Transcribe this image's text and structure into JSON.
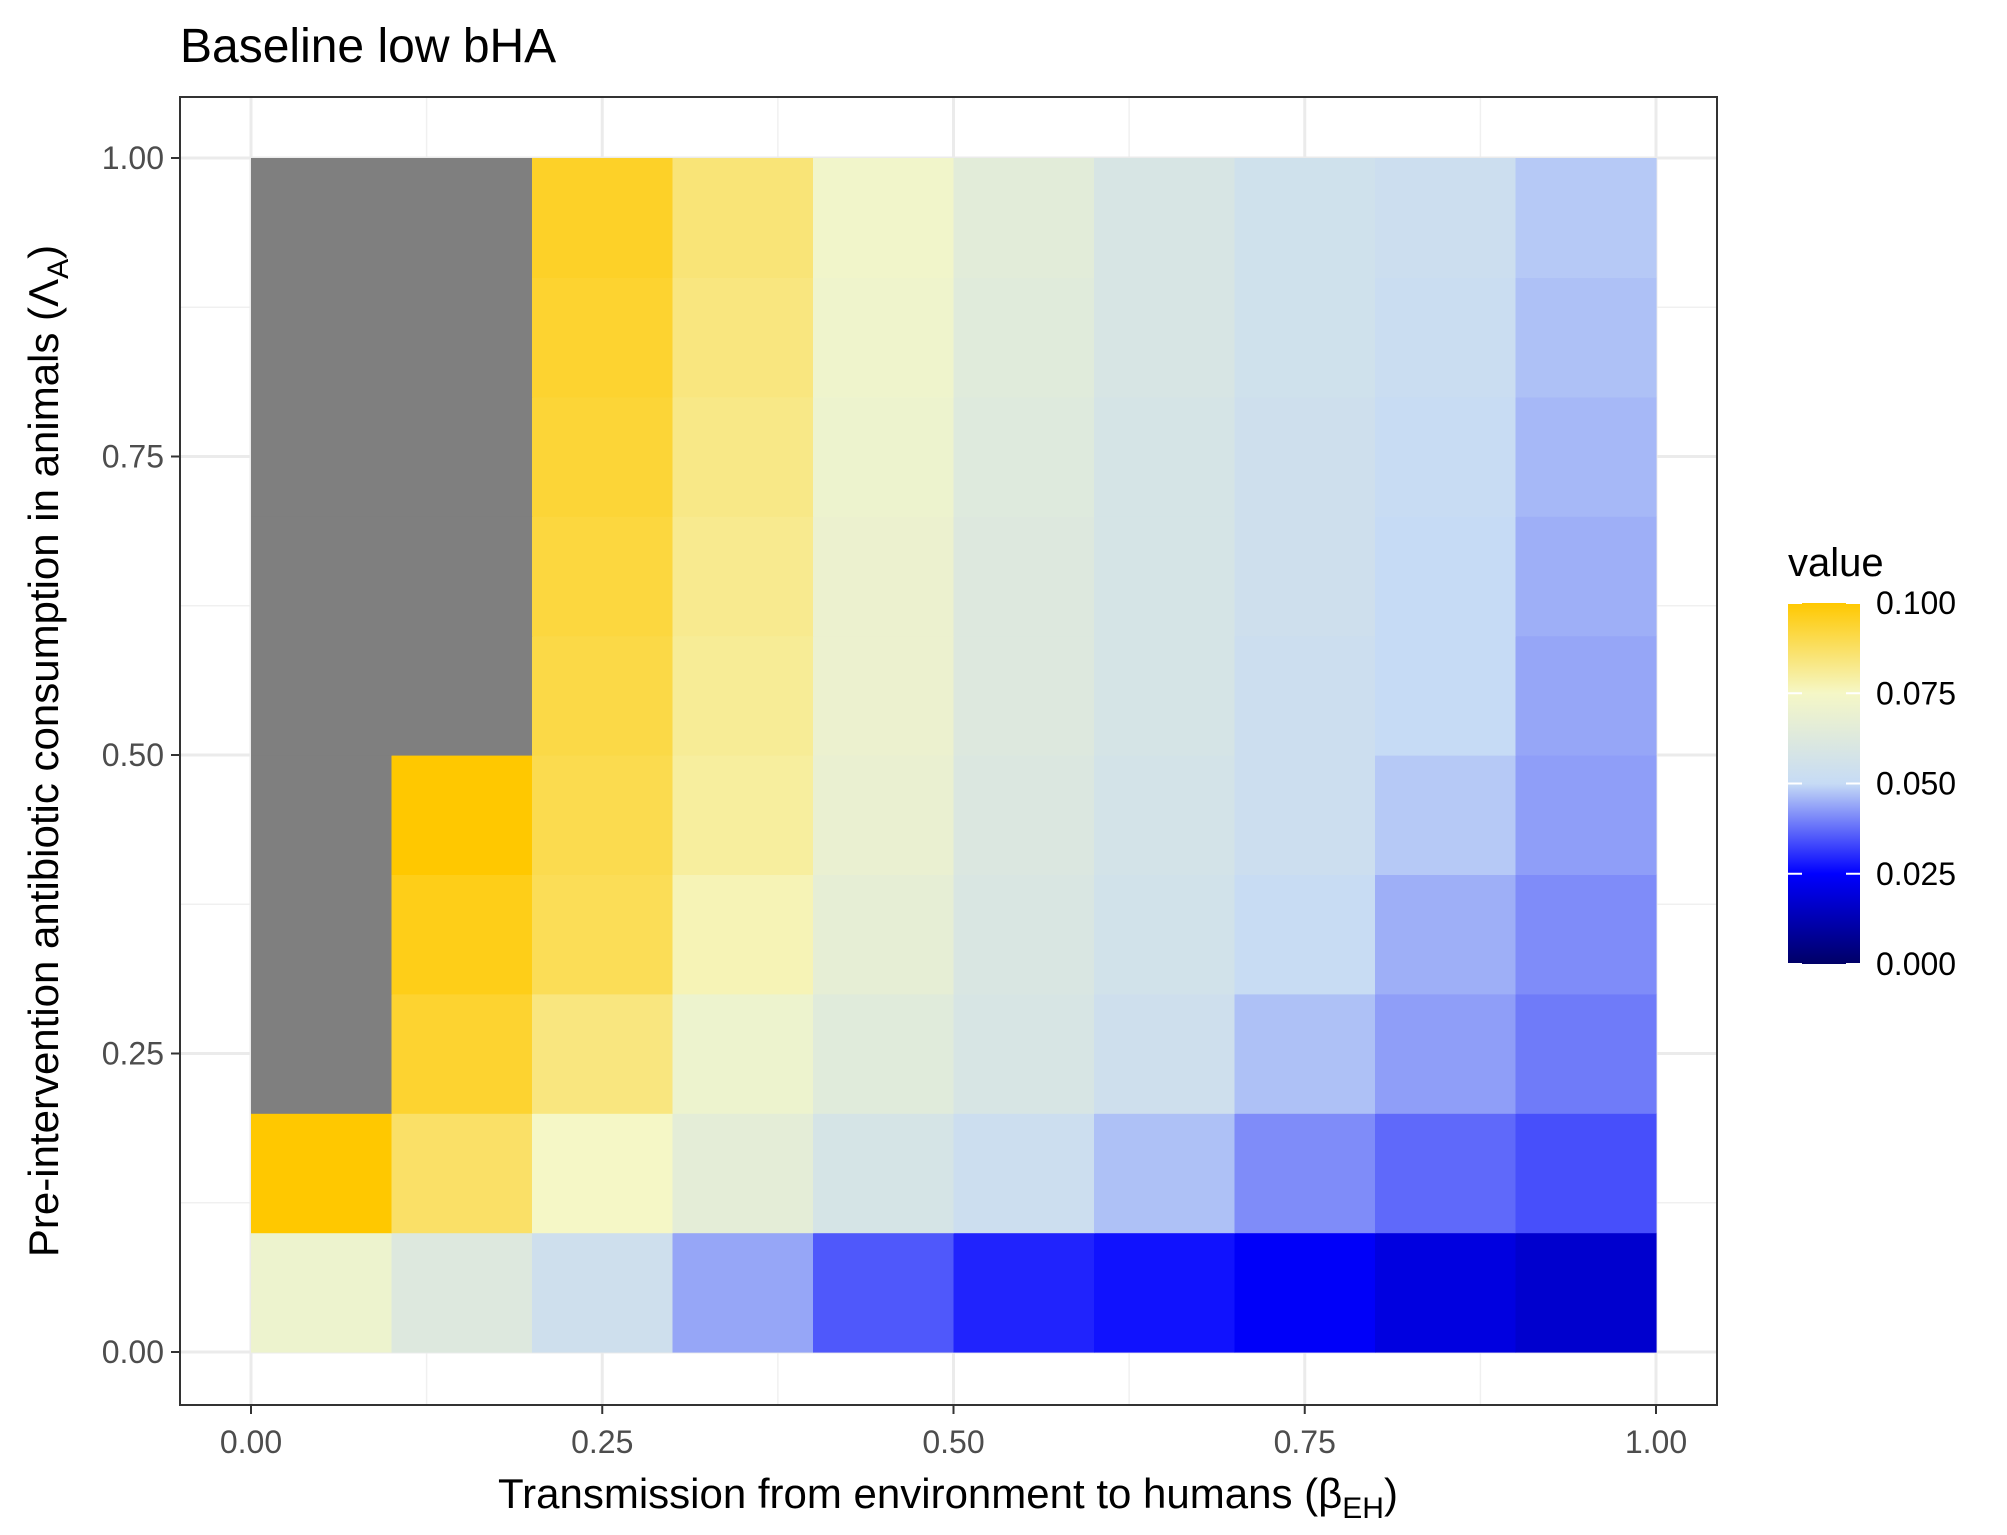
{
  "chart_data": {
    "type": "heatmap",
    "title": "Baseline low bHA",
    "xlabel": {
      "main": "Transmission from environment to humans (β",
      "sub": "EH",
      "close": ")"
    },
    "ylabel": {
      "main": "Pre-intervention antibiotic consumption in animals (Λ",
      "sub": "A",
      "close": ")"
    },
    "x_tick_labels": [
      "0.00",
      "0.25",
      "0.50",
      "0.75",
      "1.00"
    ],
    "y_tick_labels": [
      "0.00",
      "0.25",
      "0.50",
      "0.75",
      "1.00"
    ],
    "xlim": [
      0,
      1
    ],
    "ylim": [
      0,
      1
    ],
    "grid": true,
    "x_bins": [
      [
        0.0,
        0.1
      ],
      [
        0.1,
        0.2
      ],
      [
        0.2,
        0.3
      ],
      [
        0.3,
        0.4
      ],
      [
        0.4,
        0.5
      ],
      [
        0.5,
        0.6
      ],
      [
        0.6,
        0.7
      ],
      [
        0.7,
        0.8
      ],
      [
        0.8,
        0.9
      ],
      [
        0.9,
        1.0
      ]
    ],
    "y_bins": [
      [
        0.0,
        0.1
      ],
      [
        0.1,
        0.2
      ],
      [
        0.2,
        0.3
      ],
      [
        0.3,
        0.4
      ],
      [
        0.4,
        0.5
      ],
      [
        0.5,
        0.6
      ],
      [
        0.6,
        0.7
      ],
      [
        0.7,
        0.8
      ],
      [
        0.8,
        0.9
      ],
      [
        0.9,
        1.0
      ]
    ],
    "values_note_rows_bottom_to_top": "rows[i] corresponds to y_bins[i], columns to x_bins; null = NA (gray)",
    "values": [
      [
        0.071,
        0.062,
        0.054,
        0.044,
        0.035,
        0.029,
        0.027,
        0.024,
        0.02,
        0.017
      ],
      [
        0.1,
        0.087,
        0.075,
        0.066,
        0.058,
        0.053,
        0.047,
        0.041,
        0.037,
        0.034
      ],
      [
        null,
        0.094,
        0.084,
        0.071,
        0.064,
        0.059,
        0.054,
        0.047,
        0.043,
        0.039
      ],
      [
        null,
        0.097,
        0.089,
        0.077,
        0.067,
        0.06,
        0.056,
        0.051,
        0.045,
        0.041
      ],
      [
        null,
        0.1,
        0.09,
        0.08,
        0.069,
        0.061,
        0.057,
        0.053,
        0.048,
        0.043
      ],
      [
        null,
        null,
        0.091,
        0.081,
        0.07,
        0.062,
        0.058,
        0.053,
        0.05,
        0.044
      ],
      [
        null,
        null,
        0.092,
        0.082,
        0.07,
        0.062,
        0.058,
        0.054,
        0.05,
        0.045
      ],
      [
        null,
        null,
        0.093,
        0.083,
        0.071,
        0.063,
        0.058,
        0.054,
        0.051,
        0.046
      ],
      [
        null,
        null,
        0.094,
        0.084,
        0.072,
        0.064,
        0.059,
        0.055,
        0.052,
        0.047
      ],
      [
        null,
        null,
        0.095,
        0.085,
        0.073,
        0.065,
        0.059,
        0.055,
        0.053,
        0.048
      ]
    ],
    "na_color": "#7f7f7f",
    "legend": {
      "title": "value",
      "position": "right",
      "labels": [
        "0.100",
        "0.075",
        "0.050",
        "0.025",
        "0.000"
      ],
      "limits": [
        0,
        0.1
      ],
      "color_stops": [
        {
          "v": 0.0,
          "color": "#000066"
        },
        {
          "v": 0.025,
          "color": "#0000ff"
        },
        {
          "v": 0.05,
          "color": "#c6dbf5"
        },
        {
          "v": 0.075,
          "color": "#f5f7c6"
        },
        {
          "v": 0.1,
          "color": "#ffc800"
        }
      ]
    }
  }
}
